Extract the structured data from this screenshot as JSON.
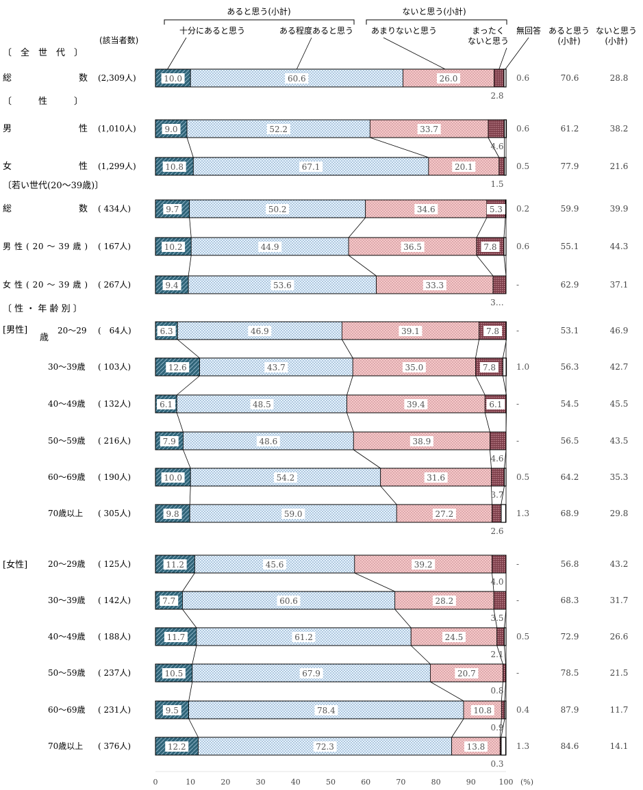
{
  "chart_data": {
    "type": "stacked-bar-horizontal",
    "header": {
      "group_yes": "あると思う(小計)",
      "group_no": "ないと思う(小計)",
      "legend": [
        "十分にあると思う",
        "ある程度あると思う",
        "あまりないと思う",
        "まったく\nないと思う",
        "無回答"
      ],
      "legend_l1": "十分にあると思う",
      "legend_l2": "ある程度あると思う",
      "legend_l3": "あまりないと思う",
      "legend_l4a": "まったく",
      "legend_l4b": "ないと思う",
      "legend_l5": "無回答",
      "col_yes_a": "あると思う",
      "col_yes_b": "(小計)",
      "col_no_a": "ないと思う",
      "col_no_b": "(小計)",
      "respondents": "(該当者数)"
    },
    "sections": {
      "all": "〔　全　世　代　〕",
      "sex": "〔　　　性　　　〕",
      "young": "〔若い世代(20～39歳)〕",
      "age": "〔 性 ・ 年 齢 別 〕",
      "male": "[男性]",
      "female": "[女性]",
      "male_age_suffix": "歳"
    },
    "series": [
      "十分にあると思う",
      "ある程度あると思う",
      "あまりないと思う",
      "まったくないと思う",
      "無回答"
    ],
    "rows": [
      {
        "label": "総　　　　　数",
        "n": "(2,309人)",
        "values": [
          10.0,
          60.6,
          26.0,
          2.8,
          0.6
        ],
        "labels": [
          "10.0",
          "60.6",
          "26.0",
          "2.8",
          "0.6"
        ],
        "yes": "70.6",
        "no": "28.8"
      },
      {
        "label": "男　　　　　性",
        "n": "(1,010人)",
        "values": [
          9.0,
          52.2,
          33.7,
          4.6,
          0.6
        ],
        "labels": [
          "9.0",
          "52.2",
          "33.7",
          "4.6",
          "0.6"
        ],
        "yes": "61.2",
        "no": "38.2"
      },
      {
        "label": "女　　　　　性",
        "n": "(1,299人)",
        "values": [
          10.8,
          67.1,
          20.1,
          1.5,
          0.5
        ],
        "labels": [
          "10.8",
          "67.1",
          "20.1",
          "1.5",
          "0.5"
        ],
        "yes": "77.9",
        "no": "21.6"
      },
      {
        "label": "総　　　　　数",
        "n": "( 434人)",
        "values": [
          9.7,
          50.2,
          34.6,
          5.3,
          0.2
        ],
        "labels": [
          "9.7",
          "50.2",
          "34.6",
          "5.3",
          "0.2"
        ],
        "yes": "59.9",
        "no": "39.9"
      },
      {
        "label": "男 性 ( 20 ～ 39 歳 )",
        "n": "( 167人)",
        "values": [
          10.2,
          44.9,
          36.5,
          7.8,
          0.6
        ],
        "labels": [
          "10.2",
          "44.9",
          "36.5",
          "7.8",
          "0.6"
        ],
        "yes": "55.1",
        "no": "44.3"
      },
      {
        "label": "女 性 ( 20 ～ 39 歳 )",
        "n": "( 267人)",
        "values": [
          9.4,
          53.6,
          33.3,
          3.7,
          0
        ],
        "labels": [
          "9.4",
          "53.6",
          "33.3",
          "3…",
          "-"
        ],
        "yes": "62.9",
        "no": "37.1"
      },
      {
        "label": "20～29",
        "n": "(　64人)",
        "values": [
          6.3,
          46.9,
          39.1,
          7.8,
          0
        ],
        "labels": [
          "6.3",
          "46.9",
          "39.1",
          "7.8",
          "-"
        ],
        "yes": "53.1",
        "no": "46.9"
      },
      {
        "label": "30～39歳",
        "n": "( 103人)",
        "values": [
          12.6,
          43.7,
          35.0,
          7.8,
          1.0
        ],
        "labels": [
          "12.6",
          "43.7",
          "35.0",
          "7.8",
          "1.0"
        ],
        "yes": "56.3",
        "no": "42.7"
      },
      {
        "label": "40～49歳",
        "n": "( 132人)",
        "values": [
          6.1,
          48.5,
          39.4,
          6.1,
          0
        ],
        "labels": [
          "6.1",
          "48.5",
          "39.4",
          "6.1",
          "-"
        ],
        "yes": "54.5",
        "no": "45.5"
      },
      {
        "label": "50～59歳",
        "n": "( 216人)",
        "values": [
          7.9,
          48.6,
          38.9,
          4.6,
          0
        ],
        "labels": [
          "7.9",
          "48.6",
          "38.9",
          "4.6",
          "-"
        ],
        "yes": "56.5",
        "no": "43.5"
      },
      {
        "label": "60～69歳",
        "n": "( 190人)",
        "values": [
          10.0,
          54.2,
          31.6,
          3.7,
          0.5
        ],
        "labels": [
          "10.0",
          "54.2",
          "31.6",
          "3.7",
          "0.5"
        ],
        "yes": "64.2",
        "no": "35.3"
      },
      {
        "label": "70歳以上",
        "n": "( 305人)",
        "values": [
          9.8,
          59.0,
          27.2,
          2.6,
          1.3
        ],
        "labels": [
          "9.8",
          "59.0",
          "27.2",
          "2.6",
          "1.3"
        ],
        "yes": "68.9",
        "no": "29.8"
      },
      {
        "label": "20～29歳",
        "n": "( 125人)",
        "values": [
          11.2,
          45.6,
          39.2,
          4.0,
          0
        ],
        "labels": [
          "11.2",
          "45.6",
          "39.2",
          "4.0",
          "-"
        ],
        "yes": "56.8",
        "no": "43.2"
      },
      {
        "label": "30～39歳",
        "n": "( 142人)",
        "values": [
          7.7,
          60.6,
          28.2,
          3.5,
          0
        ],
        "labels": [
          "7.7",
          "60.6",
          "28.2",
          "3.5",
          "-"
        ],
        "yes": "68.3",
        "no": "31.7"
      },
      {
        "label": "40～49歳",
        "n": "( 188人)",
        "values": [
          11.7,
          61.2,
          24.5,
          2.1,
          0.5
        ],
        "labels": [
          "11.7",
          "61.2",
          "24.5",
          "2.1",
          "0.5"
        ],
        "yes": "72.9",
        "no": "26.6"
      },
      {
        "label": "50～59歳",
        "n": "( 237人)",
        "values": [
          10.5,
          67.9,
          20.7,
          0.8,
          0
        ],
        "labels": [
          "10.5",
          "67.9",
          "20.7",
          "0.8",
          "-"
        ],
        "yes": "78.5",
        "no": "21.5"
      },
      {
        "label": "60～69歳",
        "n": "( 231人)",
        "values": [
          9.5,
          78.4,
          10.8,
          0.9,
          0.4
        ],
        "labels": [
          "9.5",
          "78.4",
          "10.8",
          "0.9",
          "0.4"
        ],
        "yes": "87.9",
        "no": "11.7"
      },
      {
        "label": "70歳以上",
        "n": "( 376人)",
        "values": [
          12.2,
          72.3,
          13.8,
          0.3,
          1.3
        ],
        "labels": [
          "12.2",
          "72.3",
          "13.8",
          "0.3",
          "1.3"
        ],
        "yes": "84.6",
        "no": "14.1"
      }
    ],
    "x_ticks": [
      "0",
      "10",
      "20",
      "30",
      "40",
      "50",
      "60",
      "70",
      "80",
      "90",
      "100"
    ],
    "x_unit": "(%)",
    "xlim": [
      0,
      100
    ],
    "colors": {
      "s1": "#2f6478",
      "s2": "#dcefff",
      "s3": "#f3c2c2",
      "s4": "#9c5563",
      "s5": "#ffffff",
      "dots": "#6f93b4",
      "dots_pink": "#b57b84"
    }
  }
}
